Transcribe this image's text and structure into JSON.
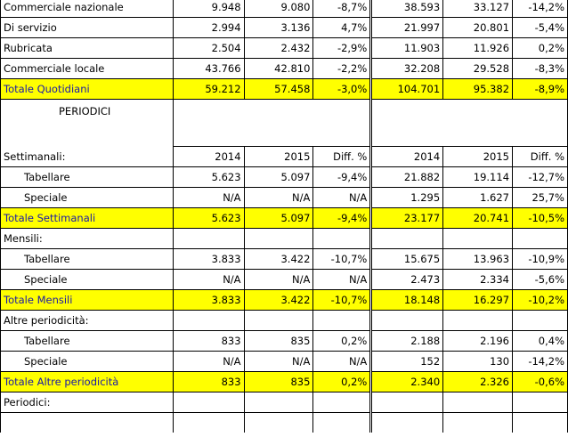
{
  "rows_top": [
    {
      "label": "Commerciale nazionale",
      "v": [
        "9.948",
        "9.080",
        "-8,7%",
        "38.593",
        "33.127",
        "-14,2%"
      ]
    },
    {
      "label": "Di servizio",
      "v": [
        "2.994",
        "3.136",
        "4,7%",
        "21.997",
        "20.801",
        "-5,4%"
      ]
    },
    {
      "label": "Rubricata",
      "v": [
        "2.504",
        "2.432",
        "-2,9%",
        "11.903",
        "11.926",
        "0,2%"
      ]
    },
    {
      "label": "Commerciale locale",
      "v": [
        "43.766",
        "42.810",
        "-2,2%",
        "32.208",
        "29.528",
        "-8,3%"
      ]
    }
  ],
  "total_quotidiani": {
    "label": "Totale Quotidiani",
    "v": [
      "59.212",
      "57.458",
      "-3,0%",
      "104.701",
      "95.382",
      "-8,9%"
    ]
  },
  "periodici_title": "PERIODICI",
  "settimanali": {
    "header": {
      "label": "Settimanali:",
      "h": [
        "2014",
        "2015",
        "Diff. %",
        "2014",
        "2015",
        "Diff. %"
      ]
    },
    "rows": [
      {
        "label": "Tabellare",
        "v": [
          "5.623",
          "5.097",
          "-9,4%",
          "21.882",
          "19.114",
          "-12,7%"
        ]
      },
      {
        "label": "Speciale",
        "v": [
          "N/A",
          "N/A",
          "N/A",
          "1.295",
          "1.627",
          "25,7%"
        ]
      }
    ],
    "total": {
      "label": "Totale Settimanali",
      "v": [
        "5.623",
        "5.097",
        "-9,4%",
        "23.177",
        "20.741",
        "-10,5%"
      ]
    }
  },
  "mensili": {
    "header": {
      "label": "Mensili:"
    },
    "rows": [
      {
        "label": "Tabellare",
        "v": [
          "3.833",
          "3.422",
          "-10,7%",
          "15.675",
          "13.963",
          "-10,9%"
        ]
      },
      {
        "label": "Speciale",
        "v": [
          "N/A",
          "N/A",
          "N/A",
          "2.473",
          "2.334",
          "-5,6%"
        ]
      }
    ],
    "total": {
      "label": "Totale Mensili",
      "v": [
        "3.833",
        "3.422",
        "-10,7%",
        "18.148",
        "16.297",
        "-10,2%"
      ]
    }
  },
  "altre": {
    "header": {
      "label": "Altre periodicità:"
    },
    "rows": [
      {
        "label": "Tabellare",
        "v": [
          "833",
          "835",
          "0,2%",
          "2.188",
          "2.196",
          "0,4%"
        ]
      },
      {
        "label": "Speciale",
        "v": [
          "N/A",
          "N/A",
          "N/A",
          "152",
          "130",
          "-14,2%"
        ]
      }
    ],
    "total": {
      "label": "Totale Altre periodicità",
      "v": [
        "833",
        "835",
        "0,2%",
        "2.340",
        "2.326",
        "-0,6%"
      ]
    }
  },
  "periodici_footer": {
    "label": "Periodici:"
  },
  "colors": {
    "total_fill": "#ffff00",
    "total_label": "#1a1aa8"
  }
}
